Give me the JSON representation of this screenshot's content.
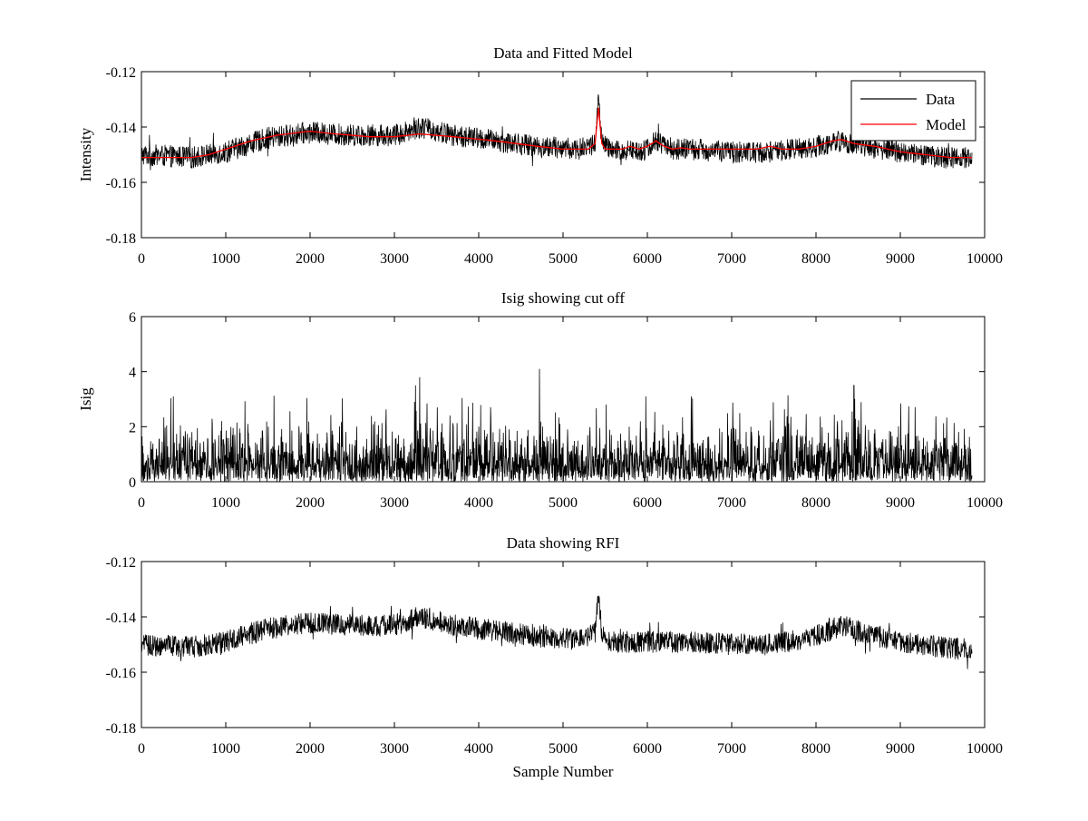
{
  "chart_data": [
    {
      "type": "line",
      "title": "Data and Fitted Model",
      "xlabel": "",
      "ylabel": "Intensity",
      "xlim": [
        0,
        10000
      ],
      "ylim": [
        -0.18,
        -0.12
      ],
      "xticks": [
        0,
        1000,
        2000,
        3000,
        4000,
        5000,
        6000,
        7000,
        8000,
        9000,
        10000
      ],
      "yticks": [
        -0.18,
        -0.16,
        -0.14,
        -0.12
      ],
      "xtick_labels": [
        "0",
        "1000",
        "2000",
        "3000",
        "4000",
        "5000",
        "6000",
        "7000",
        "8000",
        "9000",
        "10000"
      ],
      "ytick_labels": [
        "-0.18",
        "-0.16",
        "-0.14",
        "-0.12"
      ],
      "legend": {
        "position": "top-right",
        "entries": [
          "Data",
          "Model"
        ]
      },
      "series": [
        {
          "name": "Data",
          "color": "#000000",
          "noise_amplitude": 0.004,
          "x_range": [
            0,
            9850
          ],
          "baseline": {
            "x": [
              0,
              600,
              1000,
              1500,
              2000,
              2500,
              3000,
              3300,
              3700,
              4200,
              4700,
              5200,
              5380,
              5420,
              5460,
              5600,
              6000,
              6100,
              6300,
              6500,
              7000,
              7500,
              8000,
              8300,
              8600,
              9000,
              9500,
              9850
            ],
            "y": [
              -0.15,
              -0.151,
              -0.149,
              -0.144,
              -0.142,
              -0.143,
              -0.143,
              -0.14,
              -0.143,
              -0.145,
              -0.147,
              -0.148,
              -0.146,
              -0.13,
              -0.146,
              -0.149,
              -0.148,
              -0.145,
              -0.148,
              -0.148,
              -0.149,
              -0.149,
              -0.147,
              -0.145,
              -0.147,
              -0.149,
              -0.151,
              -0.151
            ]
          }
        },
        {
          "name": "Model",
          "color": "#ff0000",
          "x": [
            0,
            300,
            600,
            800,
            1000,
            1300,
            1600,
            2000,
            2300,
            2700,
            3000,
            3300,
            3700,
            4200,
            4700,
            5000,
            5300,
            5380,
            5420,
            5460,
            5500,
            5700,
            5800,
            5900,
            6000,
            6100,
            6200,
            6300,
            6400,
            6500,
            6700,
            7000,
            7300,
            7450,
            7600,
            7800,
            8000,
            8200,
            8300,
            8450,
            8700,
            9000,
            9300,
            9600,
            9850
          ],
          "y": [
            -0.151,
            -0.151,
            -0.151,
            -0.15,
            -0.148,
            -0.145,
            -0.143,
            -0.1415,
            -0.1425,
            -0.1435,
            -0.1435,
            -0.1425,
            -0.1435,
            -0.145,
            -0.147,
            -0.148,
            -0.148,
            -0.146,
            -0.133,
            -0.146,
            -0.148,
            -0.148,
            -0.147,
            -0.148,
            -0.147,
            -0.145,
            -0.147,
            -0.148,
            -0.1475,
            -0.148,
            -0.148,
            -0.148,
            -0.148,
            -0.147,
            -0.148,
            -0.148,
            -0.147,
            -0.145,
            -0.1445,
            -0.146,
            -0.147,
            -0.149,
            -0.15,
            -0.151,
            -0.151
          ]
        }
      ]
    },
    {
      "type": "line",
      "title": "Isig showing cut off",
      "xlabel": "",
      "ylabel": "Isig",
      "xlim": [
        0,
        10000
      ],
      "ylim": [
        0,
        6
      ],
      "xticks": [
        0,
        1000,
        2000,
        3000,
        4000,
        5000,
        6000,
        7000,
        8000,
        9000,
        10000
      ],
      "yticks": [
        0,
        2,
        4,
        6
      ],
      "xtick_labels": [
        "0",
        "1000",
        "2000",
        "3000",
        "4000",
        "5000",
        "6000",
        "7000",
        "8000",
        "9000",
        "10000"
      ],
      "ytick_labels": [
        "0",
        "2",
        "4",
        "6"
      ],
      "series": [
        {
          "name": "Isig",
          "color": "#000000",
          "x_range": [
            0,
            9850
          ],
          "typical_max": 1.8,
          "spike_max": 4.1,
          "spikes": [
            {
              "x": 3300,
              "y": 3.8
            },
            {
              "x": 4720,
              "y": 4.1
            },
            {
              "x": 8450,
              "y": 3.5
            },
            {
              "x": 380,
              "y": 3.1
            },
            {
              "x": 3250,
              "y": 3.5
            }
          ]
        }
      ]
    },
    {
      "type": "line",
      "title": "Data showing RFI",
      "xlabel": "Sample Number",
      "ylabel": "",
      "xlim": [
        0,
        10000
      ],
      "ylim": [
        -0.18,
        -0.12
      ],
      "xticks": [
        0,
        1000,
        2000,
        3000,
        4000,
        5000,
        6000,
        7000,
        8000,
        9000,
        10000
      ],
      "yticks": [
        -0.18,
        -0.16,
        -0.14,
        -0.12
      ],
      "xtick_labels": [
        "0",
        "1000",
        "2000",
        "3000",
        "4000",
        "5000",
        "6000",
        "7000",
        "8000",
        "9000",
        "10000"
      ],
      "ytick_labels": [
        "-0.18",
        "-0.16",
        "-0.14",
        "-0.12"
      ],
      "series": [
        {
          "name": "Data",
          "color": "#000000",
          "noise_amplitude": 0.004,
          "x_range": [
            0,
            9850
          ],
          "baseline": {
            "x": [
              0,
              600,
              1000,
              1500,
              2000,
              2500,
              3000,
              3300,
              3700,
              4200,
              4700,
              5200,
              5380,
              5420,
              5460,
              5600,
              6000,
              6500,
              7000,
              7500,
              8000,
              8300,
              8600,
              9000,
              9500,
              9850
            ],
            "y": [
              -0.15,
              -0.151,
              -0.149,
              -0.144,
              -0.142,
              -0.143,
              -0.143,
              -0.14,
              -0.143,
              -0.145,
              -0.147,
              -0.148,
              -0.146,
              -0.13,
              -0.147,
              -0.149,
              -0.149,
              -0.149,
              -0.15,
              -0.15,
              -0.147,
              -0.143,
              -0.146,
              -0.149,
              -0.151,
              -0.152
            ]
          }
        }
      ]
    }
  ]
}
